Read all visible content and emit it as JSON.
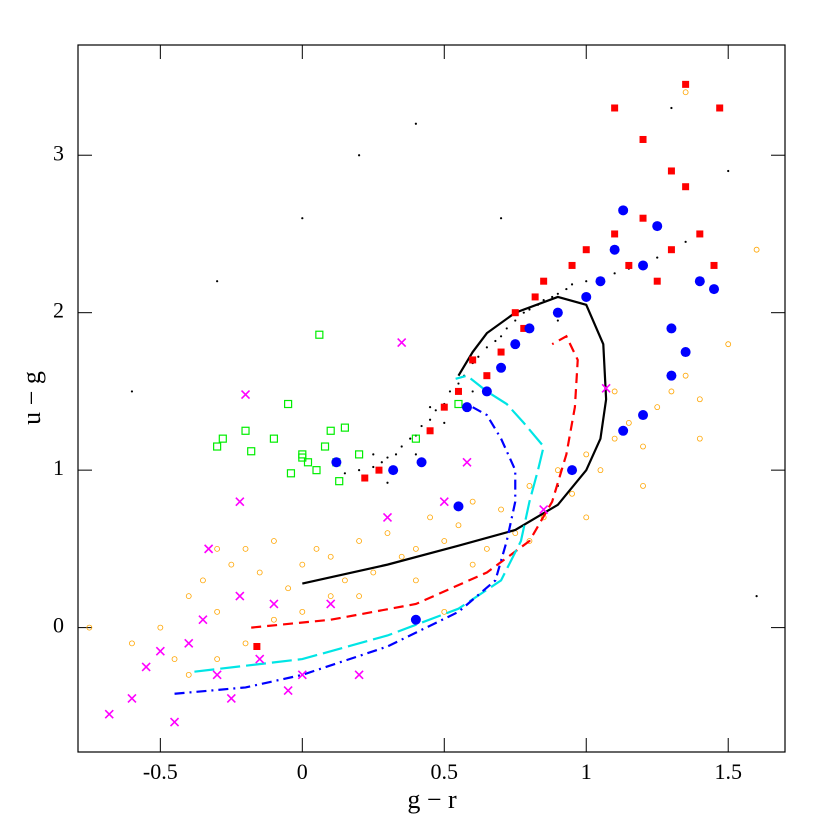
{
  "chart_data": {
    "type": "scatter",
    "xlabel": "g − r",
    "ylabel": "u − g",
    "xlim": [
      -0.79,
      1.7
    ],
    "ylim": [
      -0.79,
      3.7
    ],
    "xticks": [
      -0.5,
      0,
      0.5,
      1,
      1.5
    ],
    "yticks": [
      0,
      1,
      2,
      3
    ],
    "series": [
      {
        "marker": "dot",
        "color": "#000000",
        "x": [
          0.15,
          0.2,
          0.25,
          0.28,
          0.3,
          0.33,
          0.35,
          0.38,
          0.4,
          0.42,
          0.45,
          0.47,
          0.5,
          0.52,
          0.55,
          0.57,
          0.6,
          0.62,
          0.65,
          0.68,
          0.7,
          0.72,
          0.75,
          0.78,
          0.8,
          0.83,
          0.85,
          0.88,
          0.9,
          0.93,
          0.95,
          1.0,
          1.05,
          1.1,
          1.15,
          1.2,
          1.25,
          1.3,
          1.35,
          1.4,
          0.3,
          0.4,
          0.5,
          0.6,
          0.7,
          0.8,
          0.25,
          0.45,
          0.65,
          0.9,
          -0.3,
          0.0,
          0.4,
          1.3,
          1.5,
          -0.6,
          0.9,
          1.6,
          0.2,
          0.7
        ],
        "values": [
          0.98,
          1.0,
          1.02,
          1.05,
          1.08,
          1.1,
          1.15,
          1.2,
          1.22,
          1.28,
          1.32,
          1.38,
          1.42,
          1.5,
          1.55,
          1.6,
          1.68,
          1.72,
          1.78,
          1.82,
          1.85,
          1.9,
          1.95,
          2.0,
          2.02,
          2.05,
          2.08,
          2.1,
          2.12,
          2.15,
          2.18,
          2.2,
          2.22,
          2.25,
          2.28,
          2.3,
          2.35,
          2.4,
          2.45,
          2.5,
          0.92,
          1.1,
          1.3,
          1.5,
          1.65,
          1.9,
          1.1,
          1.4,
          1.6,
          1.95,
          2.2,
          2.6,
          3.2,
          3.3,
          2.9,
          1.5,
          0.9,
          0.2,
          3.0,
          2.6
        ]
      },
      {
        "marker": "open-circle",
        "color": "#ffa500",
        "x": [
          -0.6,
          -0.5,
          -0.45,
          -0.4,
          -0.35,
          -0.3,
          -0.25,
          -0.2,
          -0.15,
          -0.1,
          -0.05,
          0,
          0.05,
          0.1,
          0.15,
          0.2,
          0.25,
          0.3,
          0.35,
          0.4,
          0.45,
          0.5,
          0.55,
          0.6,
          0.65,
          0.7,
          0.75,
          0.8,
          0.85,
          0.9,
          0.95,
          1.0,
          1.05,
          1.1,
          1.15,
          1.2,
          1.25,
          1.3,
          1.35,
          1.4,
          -0.4,
          -0.3,
          -0.2,
          -0.1,
          0.0,
          0.2,
          0.4,
          0.6,
          0.8,
          1.0,
          1.2,
          1.4,
          -0.3,
          0.1,
          0.5,
          1.1,
          1.5,
          1.35,
          -0.75,
          1.6
        ],
        "values": [
          -0.1,
          0.0,
          -0.2,
          0.2,
          0.3,
          0.1,
          0.4,
          0.5,
          0.35,
          0.55,
          0.25,
          0.4,
          0.5,
          0.45,
          0.3,
          0.55,
          0.35,
          0.6,
          0.45,
          0.5,
          0.7,
          0.55,
          0.65,
          0.8,
          0.5,
          0.75,
          0.6,
          0.9,
          0.7,
          1.0,
          0.85,
          1.1,
          1.0,
          1.2,
          1.3,
          1.15,
          1.4,
          1.5,
          1.6,
          1.45,
          -0.3,
          -0.2,
          -0.1,
          0.05,
          0.1,
          0.2,
          0.3,
          0.4,
          0.55,
          0.7,
          0.9,
          1.2,
          0.5,
          0.2,
          0.1,
          1.5,
          1.8,
          3.4,
          0.0,
          2.4
        ]
      },
      {
        "marker": "line",
        "dash": "solid",
        "color": "#000000",
        "x": [
          0,
          0.3,
          0.55,
          0.75,
          0.9,
          1.0,
          1.05,
          1.07,
          1.06,
          1.0,
          0.9,
          0.75,
          0.65,
          0.6,
          0.55
        ],
        "values": [
          0.28,
          0.4,
          0.52,
          0.62,
          0.78,
          1.0,
          1.2,
          1.45,
          1.8,
          2.05,
          2.1,
          2.0,
          1.87,
          1.75,
          1.6
        ]
      },
      {
        "marker": "line",
        "dash": "dashed",
        "color": "#ff0000",
        "x": [
          -0.18,
          0.1,
          0.4,
          0.65,
          0.8,
          0.88,
          0.93,
          0.96,
          0.97,
          0.93,
          0.88
        ],
        "values": [
          0.0,
          0.05,
          0.15,
          0.35,
          0.55,
          0.8,
          1.1,
          1.4,
          1.7,
          1.85,
          1.8
        ]
      },
      {
        "marker": "line",
        "dash": "longdash",
        "color": "#00e5e5",
        "x": [
          -0.38,
          0,
          0.3,
          0.55,
          0.7,
          0.77,
          0.8,
          0.83,
          0.85,
          0.78,
          0.72,
          0.65,
          0.58,
          0.54
        ],
        "values": [
          -0.28,
          -0.2,
          -0.05,
          0.12,
          0.3,
          0.55,
          0.8,
          1.0,
          1.15,
          1.3,
          1.42,
          1.5,
          1.6,
          1.58
        ]
      },
      {
        "marker": "line",
        "dash": "dashdot",
        "color": "#0000ff",
        "x": [
          -0.45,
          -0.2,
          0,
          0.3,
          0.55,
          0.68,
          0.72,
          0.75,
          0.75,
          0.7,
          0.65,
          0.6
        ],
        "values": [
          -0.42,
          -0.38,
          -0.3,
          -0.12,
          0.1,
          0.3,
          0.55,
          0.8,
          1.0,
          1.2,
          1.35,
          1.4
        ]
      },
      {
        "marker": "open-square",
        "color": "#00ee00",
        "x": [
          -0.3,
          -0.28,
          -0.2,
          -0.18,
          -0.1,
          -0.05,
          0,
          0.02,
          0.05,
          0.08,
          0.1,
          0.12,
          0.15,
          0.2,
          0.06,
          -0.04,
          0.13,
          0.4,
          0.55,
          0.0
        ],
        "values": [
          1.15,
          1.2,
          1.25,
          1.12,
          1.2,
          1.42,
          1.1,
          1.05,
          1.0,
          1.15,
          1.25,
          1.05,
          1.27,
          1.1,
          1.86,
          0.98,
          0.93,
          1.2,
          1.42,
          1.08
        ]
      },
      {
        "marker": "square",
        "color": "#ff0000",
        "x": [
          0.22,
          0.27,
          0.45,
          0.5,
          0.55,
          0.6,
          0.65,
          0.7,
          0.75,
          0.78,
          0.82,
          0.85,
          0.9,
          0.95,
          1.0,
          1.05,
          1.1,
          1.15,
          1.2,
          1.25,
          1.3,
          1.35,
          1.4,
          1.45,
          1.1,
          1.2,
          1.3,
          1.35,
          1.47,
          -0.16
        ],
        "values": [
          0.95,
          1.0,
          1.25,
          1.4,
          1.5,
          1.7,
          1.6,
          1.75,
          2.0,
          1.9,
          2.1,
          2.2,
          2.0,
          2.3,
          2.4,
          2.2,
          2.5,
          2.3,
          2.6,
          2.2,
          2.4,
          2.8,
          2.5,
          2.3,
          3.3,
          3.1,
          2.9,
          3.45,
          3.3,
          -0.12
        ]
      },
      {
        "marker": "circle",
        "color": "#0000ff",
        "x": [
          0.12,
          0.32,
          0.42,
          0.55,
          0.58,
          0.65,
          0.7,
          0.75,
          0.8,
          0.9,
          0.95,
          1.0,
          1.05,
          1.1,
          1.13,
          1.2,
          1.25,
          1.3,
          1.35,
          1.4,
          1.45,
          1.2,
          1.3,
          1.13,
          0.4
        ],
        "values": [
          1.05,
          1.0,
          1.05,
          0.77,
          1.4,
          1.5,
          1.65,
          1.8,
          1.9,
          2.0,
          1.0,
          2.1,
          2.2,
          2.4,
          2.65,
          2.3,
          2.55,
          1.9,
          1.75,
          2.2,
          2.15,
          1.35,
          1.6,
          1.25,
          0.05
        ]
      },
      {
        "marker": "cross",
        "color": "#ff00ff",
        "x": [
          -0.68,
          -0.6,
          -0.55,
          -0.5,
          -0.45,
          -0.4,
          -0.35,
          -0.33,
          -0.3,
          -0.25,
          -0.22,
          -0.2,
          -0.15,
          -0.1,
          -0.05,
          0.0,
          0.1,
          0.2,
          0.3,
          0.35,
          0.5,
          0.58,
          0.85,
          1.07,
          -0.22
        ],
        "values": [
          -0.55,
          -0.45,
          -0.25,
          -0.15,
          -0.6,
          -0.1,
          0.05,
          0.5,
          -0.3,
          -0.45,
          0.2,
          1.48,
          -0.2,
          0.15,
          -0.4,
          -0.3,
          0.15,
          -0.3,
          0.7,
          1.81,
          0.8,
          1.05,
          0.75,
          1.52,
          0.8
        ]
      }
    ]
  }
}
